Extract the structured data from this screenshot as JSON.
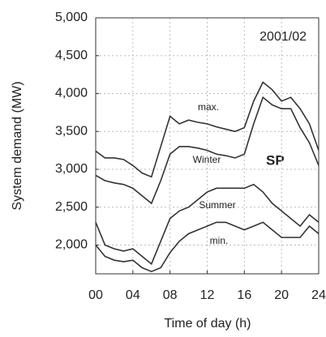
{
  "chart_data": {
    "type": "line",
    "xlabel": "Time of day (h)",
    "ylabel": "System demand (MW)",
    "annotations": [
      "2001/02",
      "SP"
    ],
    "x": [
      0,
      1,
      2,
      3,
      4,
      5,
      6,
      7,
      8,
      9,
      10,
      11,
      12,
      13,
      14,
      15,
      16,
      17,
      18,
      19,
      20,
      21,
      22,
      23,
      24
    ],
    "series": [
      {
        "name": "max.",
        "color": "#333333",
        "values": [
          3240,
          3150,
          3150,
          3130,
          3050,
          2950,
          2900,
          3300,
          3700,
          3600,
          3650,
          3620,
          3600,
          3560,
          3530,
          3500,
          3550,
          3900,
          4150,
          4050,
          3900,
          3950,
          3800,
          3600,
          3250
        ]
      },
      {
        "name": "Winter",
        "color": "#333333",
        "values": [
          2920,
          2850,
          2820,
          2800,
          2750,
          2650,
          2550,
          2850,
          3200,
          3300,
          3300,
          3280,
          3250,
          3200,
          3180,
          3150,
          3200,
          3600,
          3950,
          3850,
          3800,
          3800,
          3550,
          3350,
          3050
        ]
      },
      {
        "name": "Summer",
        "color": "#333333",
        "values": [
          2300,
          2000,
          1950,
          1920,
          1950,
          1850,
          1750,
          2050,
          2350,
          2450,
          2500,
          2600,
          2700,
          2750,
          2750,
          2750,
          2750,
          2800,
          2700,
          2550,
          2450,
          2350,
          2250,
          2400,
          2300
        ]
      },
      {
        "name": "min.",
        "color": "#333333",
        "values": [
          2000,
          1850,
          1800,
          1780,
          1800,
          1700,
          1650,
          1700,
          1900,
          2050,
          2150,
          2200,
          2250,
          2300,
          2300,
          2250,
          2200,
          2250,
          2300,
          2200,
          2100,
          2100,
          2100,
          2250,
          2150
        ]
      }
    ],
    "xlim": [
      0,
      24
    ],
    "xticks": [
      {
        "value": 0,
        "label": "00"
      },
      {
        "value": 4,
        "label": "04"
      },
      {
        "value": 8,
        "label": "08"
      },
      12,
      16,
      20,
      24
    ],
    "ylim": [
      1620,
      5000
    ],
    "yticks": [
      {
        "value": 2000,
        "label": "2,000"
      },
      {
        "value": 2500,
        "label": "2,500"
      },
      {
        "value": 3000,
        "label": "3,000"
      },
      {
        "value": 3500,
        "label": "3,500"
      },
      {
        "value": 4000,
        "label": "4,000"
      },
      {
        "value": 4500,
        "label": "4,500"
      },
      {
        "value": 5000,
        "label": "5,000"
      }
    ],
    "grid": true
  }
}
